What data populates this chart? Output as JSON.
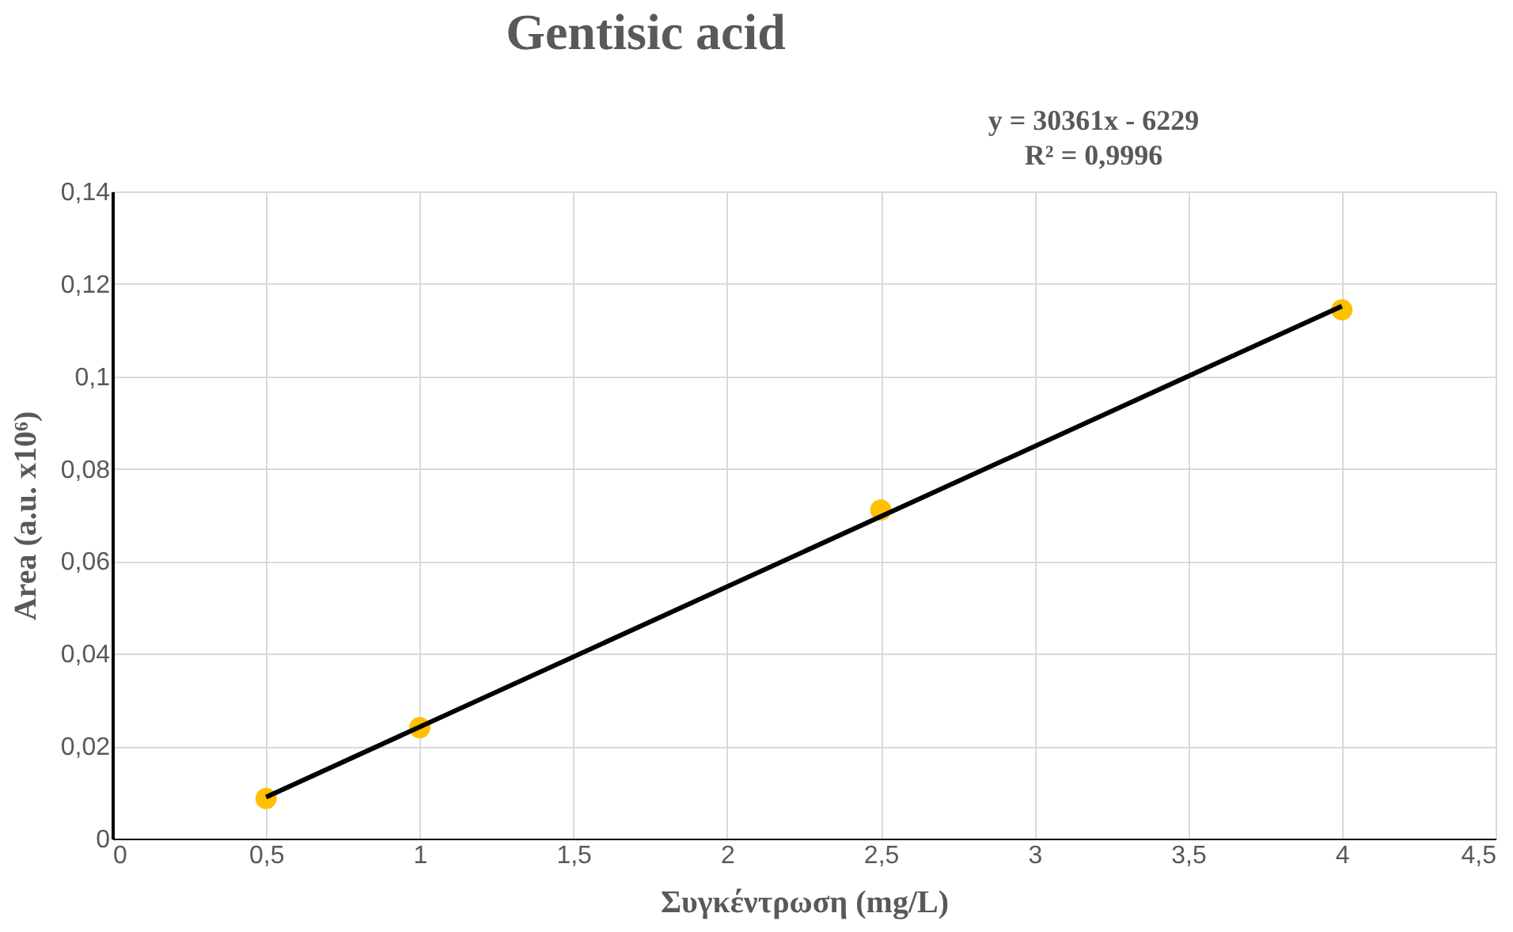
{
  "chart_data": {
    "type": "scatter",
    "title": "Gentisic acid",
    "xlabel": "Συγκέντρωση (mg/L)",
    "ylabel": "Area (a.u. x10⁶)",
    "annotations": [
      "y = 30361x - 6229",
      "R² = 0,9996"
    ],
    "x": [
      0.5,
      1,
      2.5,
      4
    ],
    "series": [
      {
        "color": "#ffc000",
        "marker": "circle",
        "values": [
          0.0087,
          0.024,
          0.0711,
          0.1144
        ]
      },
      {
        "type": "line",
        "marker": "none",
        "color": "#000000",
        "x": [
          0.5,
          4
        ],
        "values": [
          0.009,
          0.1152
        ]
      }
    ],
    "xlim": [
      0,
      4.5
    ],
    "xticks": [
      0,
      {
        "value": 0.5,
        "label": "0,5"
      },
      1,
      {
        "value": 1.5,
        "label": "1,5"
      },
      2,
      {
        "value": 2.5,
        "label": "2,5"
      },
      3,
      {
        "value": 3.5,
        "label": "3,5"
      },
      4,
      {
        "value": 4.5,
        "label": "4,5"
      }
    ],
    "ylim": [
      0,
      0.14
    ],
    "yticks": [
      0,
      {
        "value": 0.02,
        "label": "0,02"
      },
      {
        "value": 0.04,
        "label": "0,04"
      },
      {
        "value": 0.06,
        "label": "0,06"
      },
      {
        "value": 0.08,
        "label": "0,08"
      },
      {
        "value": 0.1,
        "label": "0,1"
      },
      {
        "value": 0.12,
        "label": "0,12"
      },
      {
        "value": 0.14,
        "label": "0,14"
      }
    ],
    "grid": true
  }
}
